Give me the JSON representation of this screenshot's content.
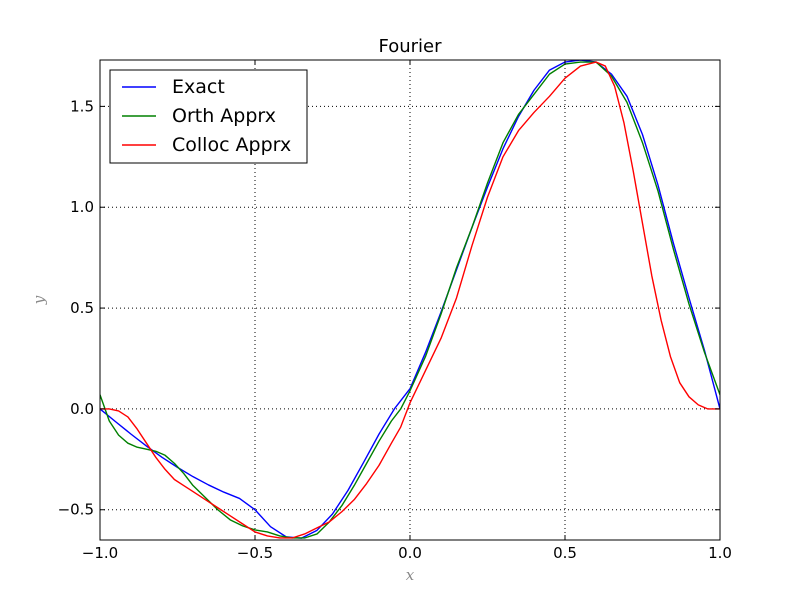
{
  "chart_data": {
    "type": "line",
    "title": "Fourier",
    "xlabel": "x",
    "ylabel": "y",
    "xlim": [
      -1.0,
      1.0
    ],
    "ylim": [
      -0.65,
      1.73
    ],
    "grid": true,
    "legend_position": "top-left",
    "xticks": [
      -1.0,
      -0.5,
      0.0,
      0.5,
      1.0
    ],
    "xtick_labels": [
      "−1.0",
      "−0.5",
      "0.0",
      "0.5",
      "1.0"
    ],
    "yticks": [
      -0.5,
      0.0,
      0.5,
      1.0,
      1.5
    ],
    "ytick_labels": [
      "−0.5",
      "0.0",
      "0.5",
      "1.0",
      "1.5"
    ],
    "series": [
      {
        "name": "Exact",
        "color": "#0000ff",
        "x": [
          -1.0,
          -0.95,
          -0.9,
          -0.85,
          -0.8,
          -0.75,
          -0.7,
          -0.65,
          -0.6,
          -0.55,
          -0.5,
          -0.45,
          -0.4,
          -0.35,
          -0.3,
          -0.25,
          -0.2,
          -0.15,
          -0.1,
          -0.05,
          0.0,
          0.05,
          0.1,
          0.15,
          0.2,
          0.25,
          0.3,
          0.35,
          0.4,
          0.45,
          0.5,
          0.55,
          0.6,
          0.65,
          0.7,
          0.75,
          0.8,
          0.85,
          0.9,
          0.95,
          1.0
        ],
        "y": [
          0.0,
          -0.063,
          -0.125,
          -0.184,
          -0.24,
          -0.29,
          -0.336,
          -0.377,
          -0.413,
          -0.444,
          -0.5,
          -0.584,
          -0.634,
          -0.641,
          -0.602,
          -0.521,
          -0.404,
          -0.266,
          -0.125,
          0.001,
          0.1,
          0.28,
          0.48,
          0.69,
          0.9,
          1.1,
          1.29,
          1.45,
          1.58,
          1.68,
          1.72,
          1.73,
          1.72,
          1.66,
          1.55,
          1.36,
          1.11,
          0.82,
          0.55,
          0.29,
          0.0
        ]
      },
      {
        "name": "Orth Apprx",
        "color": "#008000",
        "x": [
          -1.0,
          -0.97,
          -0.94,
          -0.91,
          -0.88,
          -0.85,
          -0.82,
          -0.79,
          -0.76,
          -0.73,
          -0.7,
          -0.66,
          -0.62,
          -0.58,
          -0.54,
          -0.5,
          -0.46,
          -0.42,
          -0.38,
          -0.34,
          -0.3,
          -0.26,
          -0.22,
          -0.18,
          -0.14,
          -0.1,
          -0.06,
          -0.03,
          0.0,
          0.05,
          0.1,
          0.15,
          0.2,
          0.25,
          0.3,
          0.35,
          0.4,
          0.45,
          0.5,
          0.55,
          0.6,
          0.65,
          0.7,
          0.75,
          0.8,
          0.85,
          0.9,
          0.95,
          1.0
        ],
        "y": [
          0.07,
          -0.06,
          -0.13,
          -0.17,
          -0.19,
          -0.2,
          -0.21,
          -0.23,
          -0.27,
          -0.32,
          -0.38,
          -0.44,
          -0.5,
          -0.55,
          -0.58,
          -0.6,
          -0.61,
          -0.63,
          -0.64,
          -0.64,
          -0.62,
          -0.56,
          -0.48,
          -0.38,
          -0.27,
          -0.16,
          -0.06,
          0.0,
          0.09,
          0.26,
          0.47,
          0.7,
          0.9,
          1.12,
          1.32,
          1.46,
          1.56,
          1.66,
          1.71,
          1.72,
          1.72,
          1.65,
          1.52,
          1.32,
          1.08,
          0.79,
          0.52,
          0.28,
          0.07
        ]
      },
      {
        "name": "Colloc Apprx",
        "color": "#ff0000",
        "x": [
          -1.0,
          -0.97,
          -0.94,
          -0.91,
          -0.88,
          -0.85,
          -0.82,
          -0.79,
          -0.76,
          -0.73,
          -0.7,
          -0.66,
          -0.62,
          -0.58,
          -0.54,
          -0.5,
          -0.46,
          -0.42,
          -0.38,
          -0.34,
          -0.3,
          -0.26,
          -0.22,
          -0.18,
          -0.14,
          -0.1,
          -0.06,
          -0.03,
          0.0,
          0.05,
          0.1,
          0.15,
          0.2,
          0.25,
          0.3,
          0.35,
          0.4,
          0.45,
          0.5,
          0.55,
          0.6,
          0.63,
          0.66,
          0.69,
          0.72,
          0.75,
          0.78,
          0.81,
          0.84,
          0.87,
          0.9,
          0.93,
          0.96,
          1.0
        ],
        "y": [
          0.0,
          0.0,
          -0.01,
          -0.04,
          -0.1,
          -0.17,
          -0.24,
          -0.3,
          -0.35,
          -0.38,
          -0.41,
          -0.45,
          -0.49,
          -0.53,
          -0.57,
          -0.61,
          -0.63,
          -0.64,
          -0.64,
          -0.62,
          -0.59,
          -0.56,
          -0.51,
          -0.45,
          -0.37,
          -0.28,
          -0.17,
          -0.09,
          0.03,
          0.19,
          0.35,
          0.55,
          0.81,
          1.05,
          1.25,
          1.38,
          1.47,
          1.55,
          1.64,
          1.7,
          1.72,
          1.7,
          1.6,
          1.42,
          1.18,
          0.92,
          0.66,
          0.44,
          0.26,
          0.13,
          0.06,
          0.02,
          0.0,
          0.0
        ]
      }
    ]
  }
}
